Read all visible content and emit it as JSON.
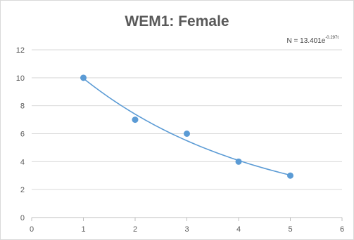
{
  "chart_data": {
    "type": "scatter",
    "title": "WEM1: Female",
    "xlabel": "",
    "ylabel": "",
    "xlim": [
      0,
      6
    ],
    "ylim": [
      0,
      12
    ],
    "x_ticks": [
      0,
      1,
      2,
      3,
      4,
      5,
      6
    ],
    "y_ticks": [
      0,
      2,
      4,
      6,
      8,
      10,
      12
    ],
    "grid": "horizontal",
    "legend": "none",
    "series": [
      {
        "x": [
          1,
          2,
          3,
          4,
          5
        ],
        "values": [
          10,
          7,
          6,
          4,
          3
        ],
        "color": "#5b9bd5"
      }
    ],
    "trendline": {
      "type": "exponential",
      "coefficient": 13.401,
      "rate": -0.297,
      "x_range": [
        1,
        5
      ],
      "equation_base": "N = 13.401e",
      "equation_exponent": "-0.297t",
      "color": "#5b9bd5"
    },
    "colors": {
      "gridline": "#d9d9d9",
      "axis": "#bfbfbf",
      "text": "#595959"
    }
  }
}
